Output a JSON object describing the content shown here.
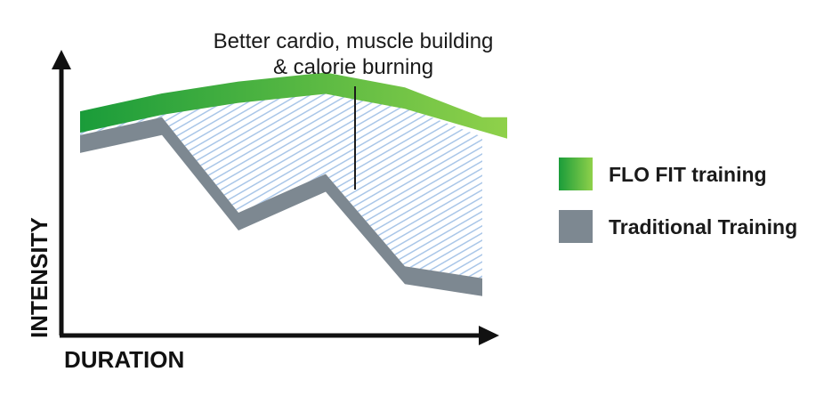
{
  "chart_data": {
    "type": "area",
    "title": "",
    "xlabel": "DURATION",
    "ylabel": "INTENSITY",
    "annotation": [
      "Better cardio, muscle building",
      "& calorie burning"
    ],
    "x": [
      0,
      1,
      2,
      3,
      4,
      5
    ],
    "series": [
      {
        "name": "FLO FIT training",
        "values": [
          0.74,
          0.8,
          0.84,
          0.87,
          0.82,
          0.72
        ]
      },
      {
        "name": "Traditional Training",
        "values": [
          0.66,
          0.72,
          0.4,
          0.53,
          0.22,
          0.18
        ]
      }
    ],
    "ylim": [
      0,
      1
    ],
    "grid": false,
    "legend_placement": "right"
  },
  "colors": {
    "flo_fit": "#6cc531",
    "flo_fit_dark": "#1a9c3a",
    "traditional": "#7d8891",
    "fill_hatch": "#a9c6e8",
    "axis": "#111111"
  }
}
